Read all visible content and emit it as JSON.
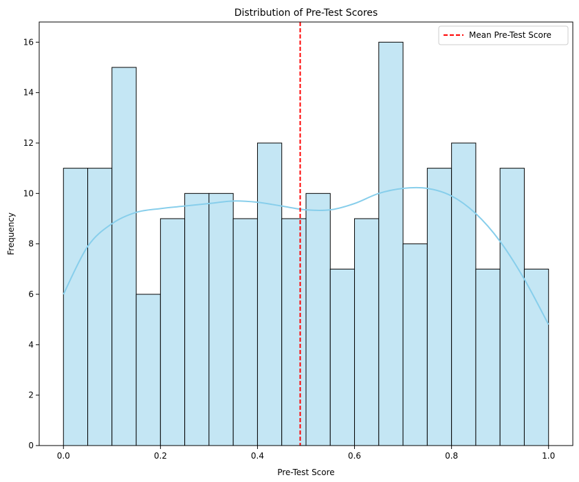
{
  "chart_data": {
    "type": "bar",
    "title": "Distribution of Pre-Test Scores",
    "xlabel": "Pre-Test Score",
    "ylabel": "Frequency",
    "xlim": [
      -0.05,
      1.05
    ],
    "ylim": [
      0,
      16.8
    ],
    "xticks": [
      0.0,
      0.2,
      0.4,
      0.6,
      0.8,
      1.0
    ],
    "xtick_labels": [
      "0.0",
      "0.2",
      "0.4",
      "0.6",
      "0.8",
      "1.0"
    ],
    "yticks": [
      0,
      2,
      4,
      6,
      8,
      10,
      12,
      14,
      16
    ],
    "ytick_labels": [
      "0",
      "2",
      "4",
      "6",
      "8",
      "10",
      "12",
      "14",
      "16"
    ],
    "bin_edges": [
      0.0,
      0.05,
      0.1,
      0.15,
      0.2,
      0.25,
      0.3,
      0.35,
      0.4,
      0.45,
      0.5,
      0.55,
      0.6,
      0.65,
      0.7,
      0.75,
      0.8,
      0.85,
      0.9,
      0.95,
      1.0
    ],
    "values": [
      11,
      11,
      15,
      6,
      9,
      10,
      10,
      9,
      12,
      9,
      10,
      7,
      9,
      16,
      8,
      11,
      12,
      7,
      11,
      7
    ],
    "kde": {
      "x": [
        0.0,
        0.05,
        0.1,
        0.15,
        0.2,
        0.25,
        0.3,
        0.35,
        0.4,
        0.45,
        0.5,
        0.55,
        0.6,
        0.65,
        0.7,
        0.75,
        0.8,
        0.85,
        0.9,
        0.95,
        1.0
      ],
      "y": [
        6.0,
        7.9,
        8.8,
        9.25,
        9.4,
        9.5,
        9.6,
        9.7,
        9.65,
        9.5,
        9.35,
        9.35,
        9.6,
        10.0,
        10.2,
        10.2,
        9.9,
        9.2,
        8.1,
        6.6,
        4.8
      ]
    },
    "mean_line": {
      "x": 0.488,
      "label": "Mean Pre-Test Score"
    },
    "legend_position": "upper right",
    "grid": false,
    "colors": {
      "bar_fill": "#c4e6f4",
      "bar_edge": "#000000",
      "kde_line": "#87ceeb",
      "mean_line": "#ff0000"
    }
  }
}
